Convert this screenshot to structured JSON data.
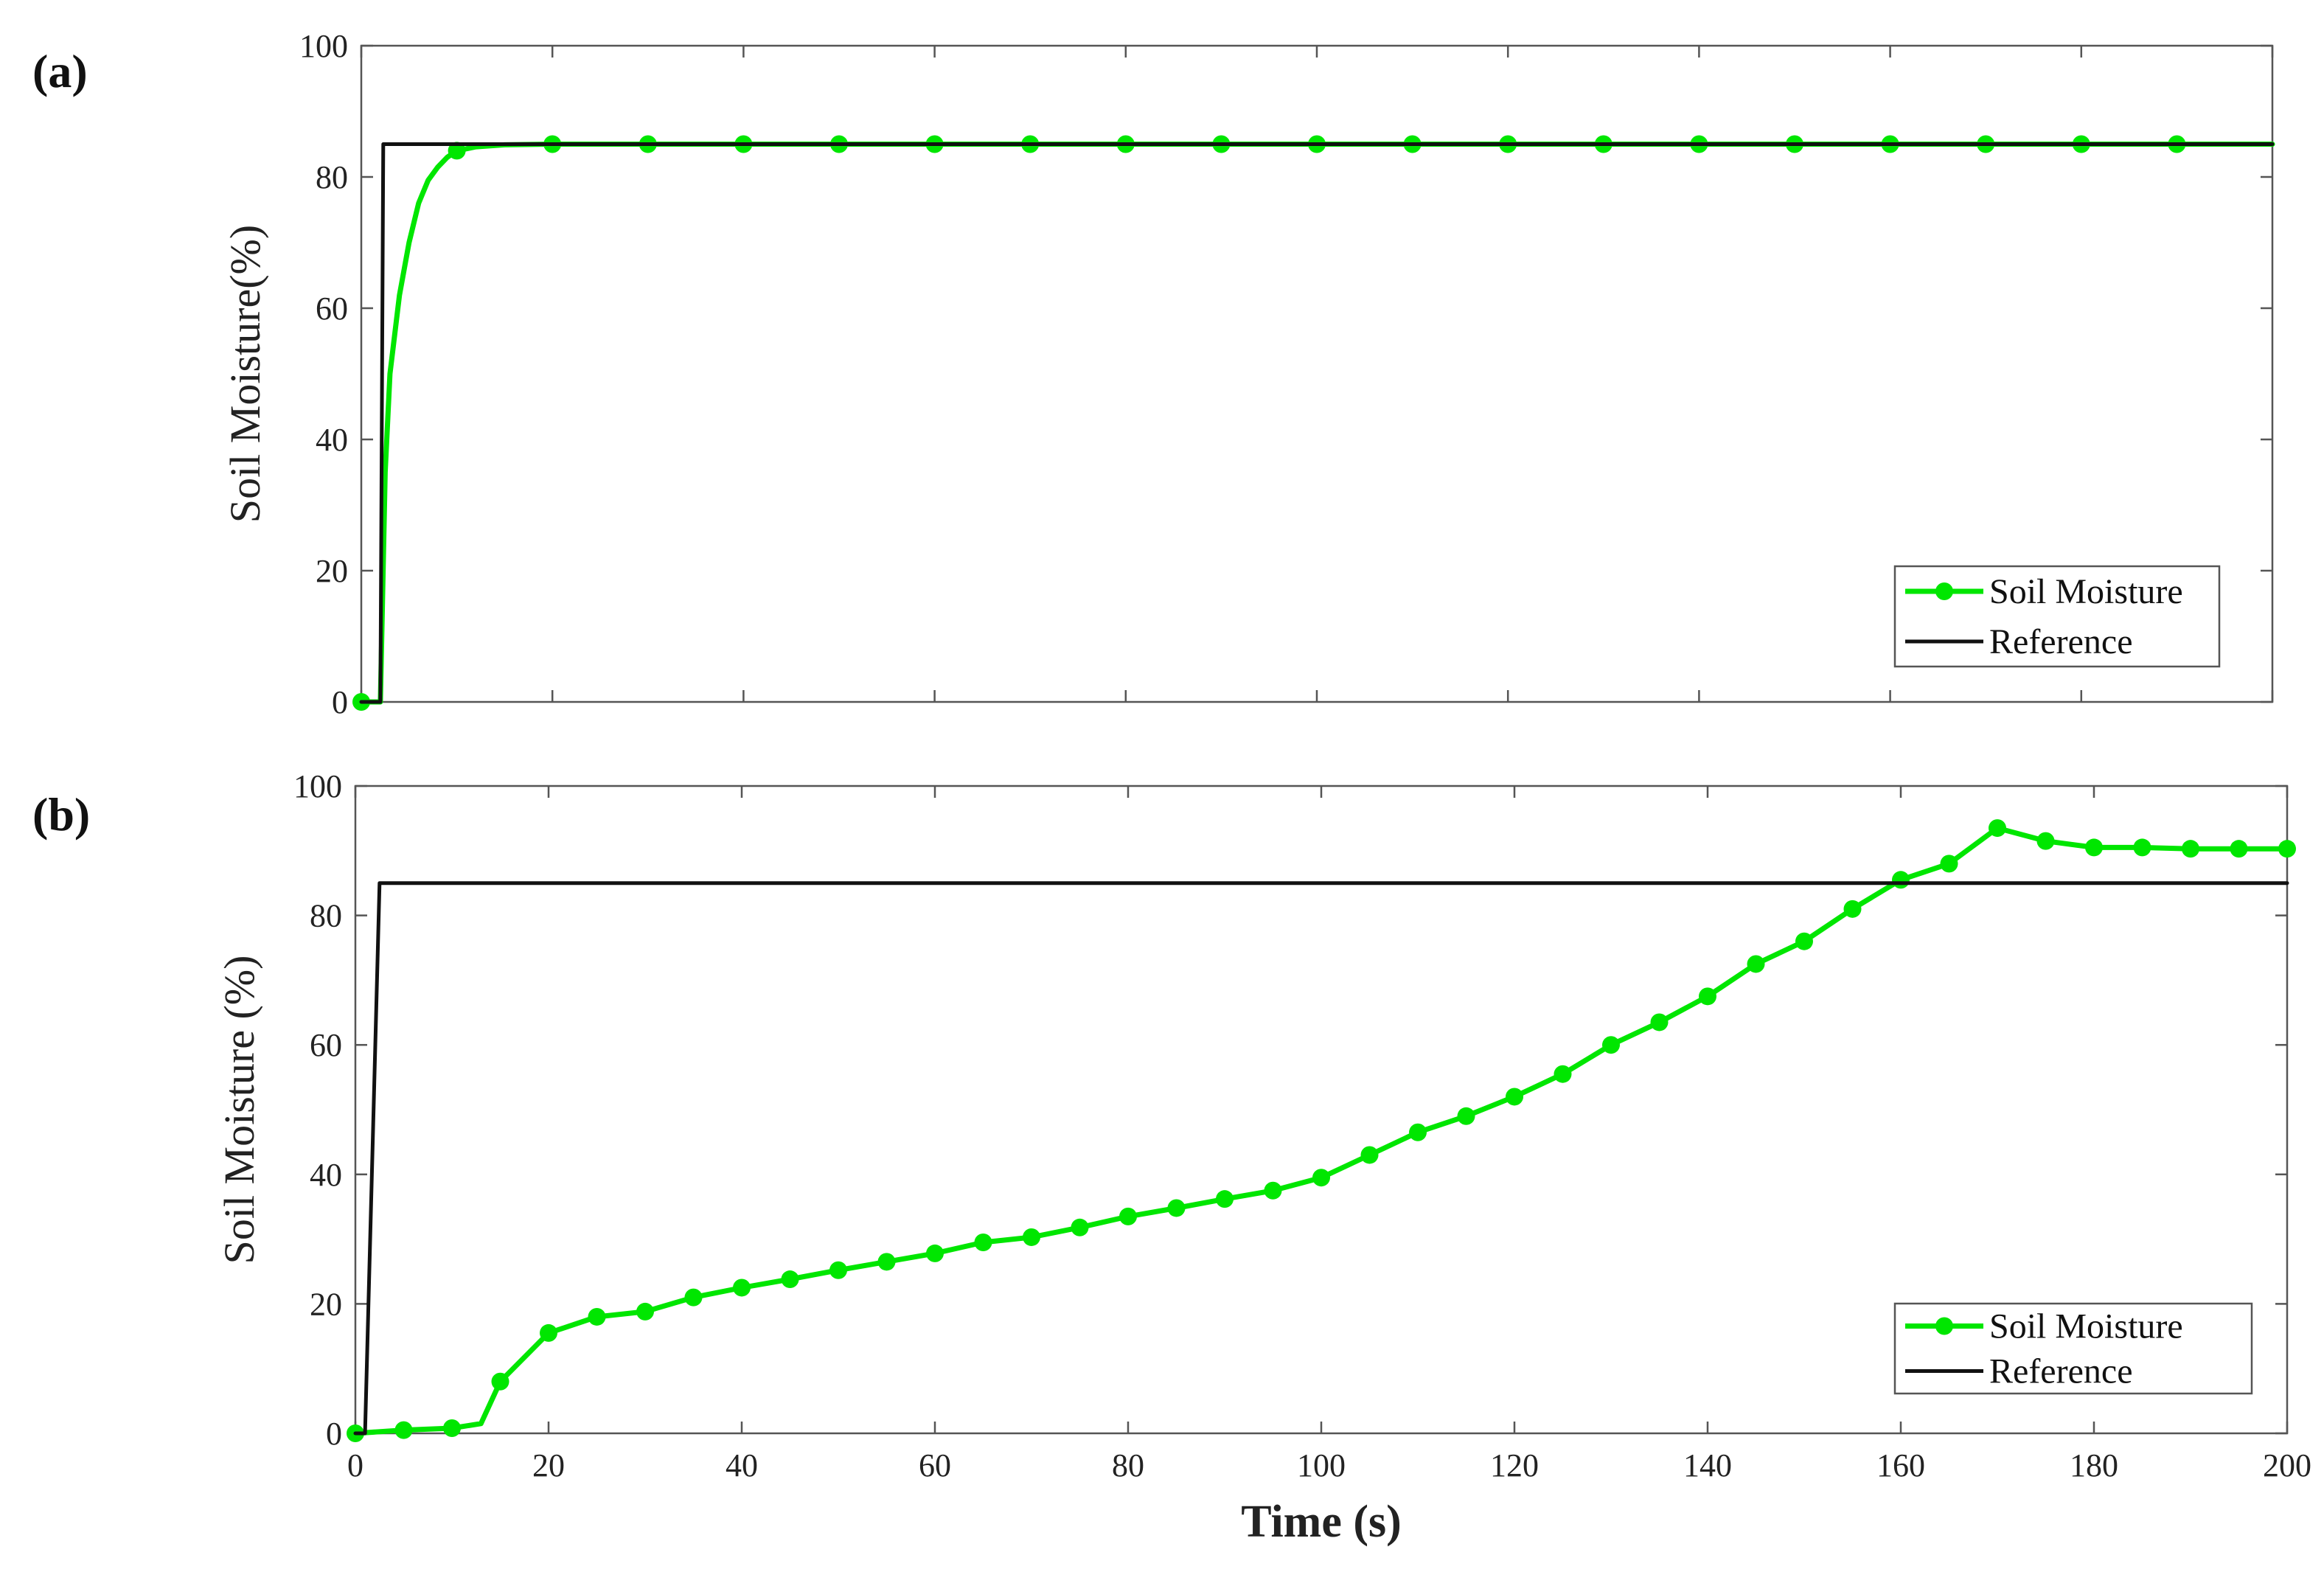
{
  "chart_data": [
    {
      "panel_label": "(a)",
      "type": "line",
      "xlabel": "",
      "ylabel": "Soil Moisture(%)",
      "xlim": [
        0,
        200
      ],
      "ylim": [
        0,
        100
      ],
      "yticks": [
        "0",
        "20",
        "40",
        "60",
        "80",
        "100"
      ],
      "xticks_shown": false,
      "grid": false,
      "legend_position": "bottom-right",
      "series": [
        {
          "name": "Soil Moisture",
          "color": "#00e600",
          "marker": "circle",
          "x": [
            0,
            2,
            2.5,
            3,
            4,
            5,
            6,
            7,
            8,
            9,
            10,
            12,
            15,
            20,
            200
          ],
          "y": [
            0,
            0,
            35,
            50,
            62,
            70,
            76,
            79.5,
            81.5,
            83,
            84,
            84.6,
            84.9,
            85,
            85
          ],
          "marker_x": [
            0,
            10,
            20,
            30,
            40,
            50,
            60,
            70,
            80,
            90,
            100,
            110,
            120,
            130,
            140,
            150,
            160,
            170,
            180,
            190
          ],
          "marker_y": [
            0,
            84,
            85,
            85,
            85,
            85,
            85,
            85,
            85,
            85,
            85,
            85,
            85,
            85,
            85,
            85,
            85,
            85,
            85,
            85
          ]
        },
        {
          "name": "Reference",
          "color": "#111111",
          "x": [
            0,
            2,
            2.3,
            200
          ],
          "y": [
            0,
            0,
            85,
            85
          ]
        }
      ]
    },
    {
      "panel_label": "(b)",
      "type": "line",
      "xlabel": "Time (s)",
      "ylabel": "Soil Moisture (%)",
      "xlim": [
        0,
        200
      ],
      "ylim": [
        0,
        100
      ],
      "xticks": [
        "0",
        "20",
        "40",
        "60",
        "80",
        "100",
        "120",
        "140",
        "160",
        "180",
        "200"
      ],
      "yticks": [
        "0",
        "20",
        "40",
        "60",
        "80",
        "100"
      ],
      "grid": false,
      "legend_position": "bottom-right",
      "series": [
        {
          "name": "Soil Moisture",
          "color": "#00e600",
          "marker": "circle",
          "x": [
            0,
            5,
            10,
            13,
            15,
            20,
            25,
            30,
            35,
            40,
            45,
            50,
            55,
            60,
            65,
            70,
            75,
            80,
            85,
            90,
            95,
            100,
            105,
            110,
            115,
            120,
            125,
            130,
            135,
            140,
            145,
            150,
            155,
            160,
            165,
            170,
            175,
            180,
            185,
            190,
            195,
            200
          ],
          "y": [
            0,
            0.5,
            0.8,
            1.5,
            8,
            15.5,
            18,
            18.8,
            21,
            22.5,
            23.8,
            25.2,
            26.5,
            27.8,
            29.5,
            30.3,
            31.8,
            33.5,
            34.8,
            36.2,
            37.5,
            39.5,
            43,
            46.5,
            49,
            52,
            55.5,
            60,
            63.5,
            67.5,
            72.5,
            76,
            81,
            85.5,
            88,
            93.5,
            91.5,
            90.5,
            90.5,
            90.3,
            90.3,
            90.3
          ],
          "marker_x": [
            0,
            5,
            10,
            15,
            20,
            25,
            30,
            35,
            40,
            45,
            50,
            55,
            60,
            65,
            70,
            75,
            80,
            85,
            90,
            95,
            100,
            105,
            110,
            115,
            120,
            125,
            130,
            135,
            140,
            145,
            150,
            155,
            160,
            165,
            170,
            175,
            180,
            185,
            190,
            195,
            200
          ],
          "marker_y": [
            0,
            0.5,
            0.8,
            8,
            15.5,
            18,
            18.8,
            21,
            22.5,
            23.8,
            25.2,
            26.5,
            27.8,
            29.5,
            30.3,
            31.8,
            33.5,
            34.8,
            36.2,
            37.5,
            39.5,
            43,
            46.5,
            49,
            52,
            55.5,
            60,
            63.5,
            67.5,
            72.5,
            76,
            81,
            85.5,
            88,
            93.5,
            91.5,
            90.5,
            90.5,
            90.3,
            90.3,
            90.3
          ]
        },
        {
          "name": "Reference",
          "color": "#111111",
          "x": [
            0,
            1,
            2.5,
            200
          ],
          "y": [
            0,
            0,
            85,
            85
          ]
        }
      ]
    }
  ]
}
